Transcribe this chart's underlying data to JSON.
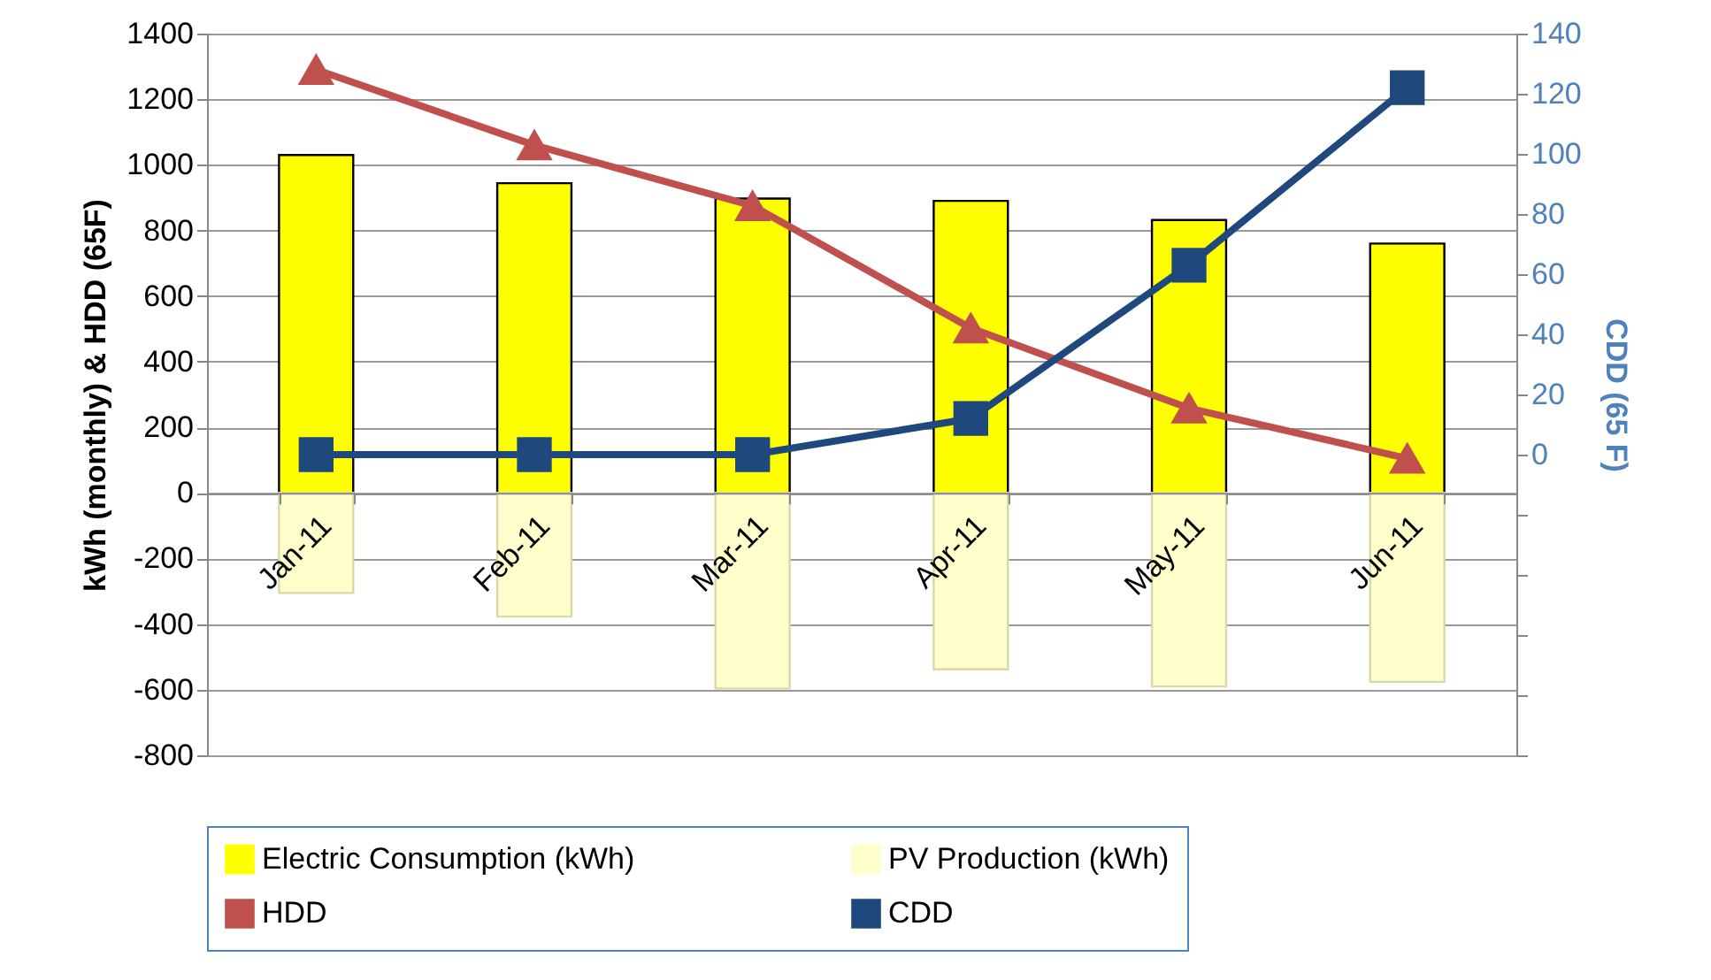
{
  "chart_data": {
    "type": "bar",
    "stacked": true,
    "ylabel": "kWh (monthly) & HDD (65F)",
    "y2label": "CDD (65 F)",
    "categories": [
      "Jan-11",
      "Feb-11",
      "Mar-11",
      "Apr-11",
      "May-11",
      "Jun-11"
    ],
    "series": [
      {
        "name": "Electric Consumption (kWh)",
        "color": "#ffff00",
        "values": [
          1030,
          944,
          897,
          890,
          832,
          760
        ]
      },
      {
        "name": "PV Production (kWh)",
        "color": "#ffffcc",
        "values": [
          -305,
          -377,
          -596,
          -538,
          -590,
          -576
        ]
      },
      {
        "name": "HDD",
        "type": "line",
        "color": "#c0504d",
        "marker": "triangle",
        "values": [
          1290,
          1060,
          875,
          502,
          258,
          105
        ]
      },
      {
        "name": "CDD",
        "type": "line",
        "axis": "y2",
        "color": "#1f497d",
        "marker": "square",
        "values": [
          0,
          0,
          0,
          12,
          63,
          122
        ]
      }
    ],
    "ylim": [
      -800,
      1400
    ],
    "yticks": [
      -800,
      -600,
      -400,
      -200,
      0,
      200,
      400,
      600,
      800,
      1000,
      1200,
      1400
    ],
    "y2lim": [
      -100,
      140
    ],
    "y2ticks": [
      {
        "value": -100,
        "label": null
      },
      {
        "value": -80,
        "label": null
      },
      {
        "value": -60,
        "label": null
      },
      {
        "value": -40,
        "label": null
      },
      {
        "value": -20,
        "label": null
      },
      0,
      20,
      40,
      60,
      80,
      100,
      120,
      140
    ],
    "grid": "y",
    "legend": "bottom"
  }
}
